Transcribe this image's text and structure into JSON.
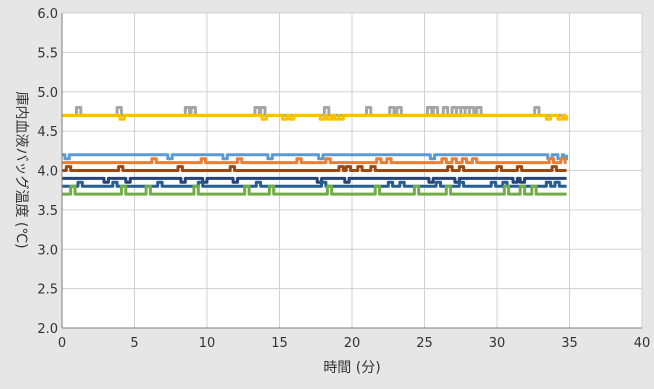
{
  "chart_data": {
    "type": "line",
    "title": "",
    "xlabel": "時間 (分)",
    "ylabel": "庫内血液バッグ温度 (℃)",
    "xlim": [
      0,
      40
    ],
    "ylim": [
      2.0,
      6.0
    ],
    "xticks": [
      0,
      5,
      10,
      15,
      20,
      25,
      30,
      35,
      40
    ],
    "yticks": [
      2.0,
      2.5,
      3.0,
      3.5,
      4.0,
      4.5,
      5.0,
      5.5,
      6.0
    ],
    "ytick_labels": [
      "2.0",
      "2.5",
      "3.0",
      "3.5",
      "4.0",
      "4.5",
      "5.0",
      "5.5",
      "6.0"
    ],
    "grid": true,
    "legend": "none",
    "series": [
      {
        "color": "#a5a5a5",
        "x_end": 34.8,
        "base": 4.7,
        "events": [
          [
            1.0,
            4.8
          ],
          [
            3.8,
            4.8
          ],
          [
            8.5,
            4.8
          ],
          [
            8.9,
            4.8
          ],
          [
            13.3,
            4.8
          ],
          [
            13.7,
            4.8
          ],
          [
            18.1,
            4.8
          ],
          [
            21.0,
            4.8
          ],
          [
            22.6,
            4.8
          ],
          [
            23.1,
            4.8
          ],
          [
            25.2,
            4.8
          ],
          [
            25.6,
            4.8
          ],
          [
            26.3,
            4.8
          ],
          [
            26.9,
            4.8
          ],
          [
            27.2,
            4.8
          ],
          [
            27.5,
            4.8
          ],
          [
            27.8,
            4.8
          ],
          [
            28.1,
            4.8
          ],
          [
            28.6,
            4.8
          ],
          [
            32.6,
            4.8
          ]
        ]
      },
      {
        "color": "#ffc000",
        "x_end": 34.8,
        "base": 4.7,
        "events": [
          [
            4.0,
            4.65
          ],
          [
            13.8,
            4.65
          ],
          [
            15.2,
            4.65
          ],
          [
            15.7,
            4.65
          ],
          [
            17.8,
            4.65
          ],
          [
            18.3,
            4.65
          ],
          [
            18.8,
            4.65
          ],
          [
            19.1,
            4.65
          ],
          [
            33.4,
            4.65
          ],
          [
            34.2,
            4.65
          ],
          [
            34.7,
            4.65
          ]
        ]
      },
      {
        "color": "#5b9bd5",
        "x_end": 34.8,
        "base": 4.2,
        "events": [
          [
            0.2,
            4.15
          ],
          [
            7.3,
            4.15
          ],
          [
            11.1,
            4.15
          ],
          [
            14.2,
            4.15
          ],
          [
            17.7,
            4.15
          ],
          [
            25.4,
            4.15
          ],
          [
            33.5,
            4.15
          ],
          [
            34.2,
            4.15
          ],
          [
            34.6,
            4.15
          ]
        ]
      },
      {
        "color": "#ed7d31",
        "x_end": 34.8,
        "base": 4.1,
        "events": [
          [
            6.2,
            4.15
          ],
          [
            9.6,
            4.15
          ],
          [
            12.1,
            4.15
          ],
          [
            16.2,
            4.15
          ],
          [
            18.2,
            4.15
          ],
          [
            21.7,
            4.15
          ],
          [
            22.4,
            4.15
          ],
          [
            26.2,
            4.15
          ],
          [
            26.9,
            4.15
          ],
          [
            27.6,
            4.15
          ],
          [
            28.3,
            4.15
          ],
          [
            33.6,
            4.15
          ],
          [
            34.4,
            4.15
          ]
        ]
      },
      {
        "color": "#9e480e",
        "x_end": 34.8,
        "base": 4.0,
        "events": [
          [
            0.3,
            4.05
          ],
          [
            3.9,
            4.05
          ],
          [
            8.0,
            4.05
          ],
          [
            11.6,
            4.05
          ],
          [
            19.1,
            4.05
          ],
          [
            19.6,
            4.05
          ],
          [
            20.4,
            4.05
          ],
          [
            21.3,
            4.05
          ],
          [
            26.6,
            4.05
          ],
          [
            27.4,
            4.05
          ],
          [
            30.0,
            4.05
          ],
          [
            31.4,
            4.05
          ],
          [
            33.8,
            4.05
          ]
        ]
      },
      {
        "color": "#264478",
        "x_end": 34.8,
        "base": 3.9,
        "events": [
          [
            2.9,
            3.85
          ],
          [
            4.4,
            3.85
          ],
          [
            8.2,
            3.85
          ],
          [
            9.7,
            3.85
          ],
          [
            11.8,
            3.85
          ],
          [
            17.6,
            3.85
          ],
          [
            19.5,
            3.85
          ],
          [
            25.3,
            3.85
          ],
          [
            27.1,
            3.85
          ],
          [
            31.1,
            3.85
          ],
          [
            31.6,
            3.85
          ]
        ]
      },
      {
        "color": "#255e91",
        "x_end": 34.8,
        "base": 3.8,
        "events": [
          [
            1.1,
            3.85
          ],
          [
            3.5,
            3.85
          ],
          [
            6.6,
            3.85
          ],
          [
            9.4,
            3.85
          ],
          [
            13.4,
            3.85
          ],
          [
            17.9,
            3.85
          ],
          [
            22.5,
            3.85
          ],
          [
            23.3,
            3.85
          ],
          [
            25.8,
            3.85
          ],
          [
            27.4,
            3.85
          ],
          [
            29.6,
            3.85
          ],
          [
            30.4,
            3.85
          ],
          [
            33.4,
            3.85
          ],
          [
            34.0,
            3.85
          ]
        ]
      },
      {
        "color": "#70ad47",
        "x_end": 34.8,
        "base": 3.7,
        "events": [
          [
            0.6,
            3.8
          ],
          [
            4.1,
            3.8
          ],
          [
            5.8,
            3.8
          ],
          [
            9.1,
            3.8
          ],
          [
            12.6,
            3.8
          ],
          [
            14.3,
            3.8
          ],
          [
            18.3,
            3.8
          ],
          [
            21.6,
            3.8
          ],
          [
            24.3,
            3.8
          ],
          [
            26.5,
            3.8
          ],
          [
            30.5,
            3.8
          ],
          [
            31.6,
            3.8
          ],
          [
            32.4,
            3.8
          ]
        ]
      }
    ]
  }
}
